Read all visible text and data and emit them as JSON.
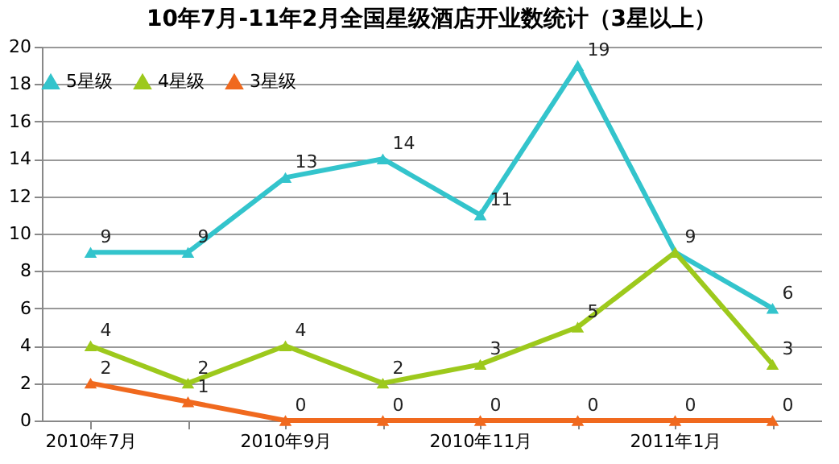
{
  "chart_data": {
    "type": "line",
    "title": "10年7月-11年2月全国星级酒店开业数统计（3星以上）",
    "categories": [
      "2010年7月",
      null,
      "2010年9月",
      null,
      "2010年11月",
      null,
      "2011年1月",
      null
    ],
    "series": [
      {
        "name": "5星级",
        "color": "#33c4cc",
        "values": [
          9,
          9,
          13,
          14,
          11,
          19,
          9,
          6
        ],
        "value_labels": [
          "9",
          "9",
          "13",
          "14",
          "11",
          "19",
          "9",
          "6"
        ]
      },
      {
        "name": "4星级",
        "color": "#9dc91c",
        "values": [
          4,
          2,
          4,
          2,
          3,
          5,
          9,
          3
        ],
        "value_labels": [
          "4",
          "2",
          "4",
          "2",
          "3",
          "5",
          null,
          "3"
        ]
      },
      {
        "name": "3星级",
        "color": "#f0691e",
        "values": [
          2,
          1,
          0,
          0,
          0,
          0,
          0,
          0
        ],
        "value_labels": [
          "2",
          "1",
          "0",
          "0",
          "0",
          "0",
          "0",
          "0"
        ]
      }
    ],
    "ylim": [
      0,
      20
    ],
    "yticks": [
      0,
      2,
      4,
      6,
      8,
      10,
      12,
      14,
      16,
      18,
      20
    ],
    "grid": "y",
    "legend": "top",
    "marker": "triangle"
  }
}
